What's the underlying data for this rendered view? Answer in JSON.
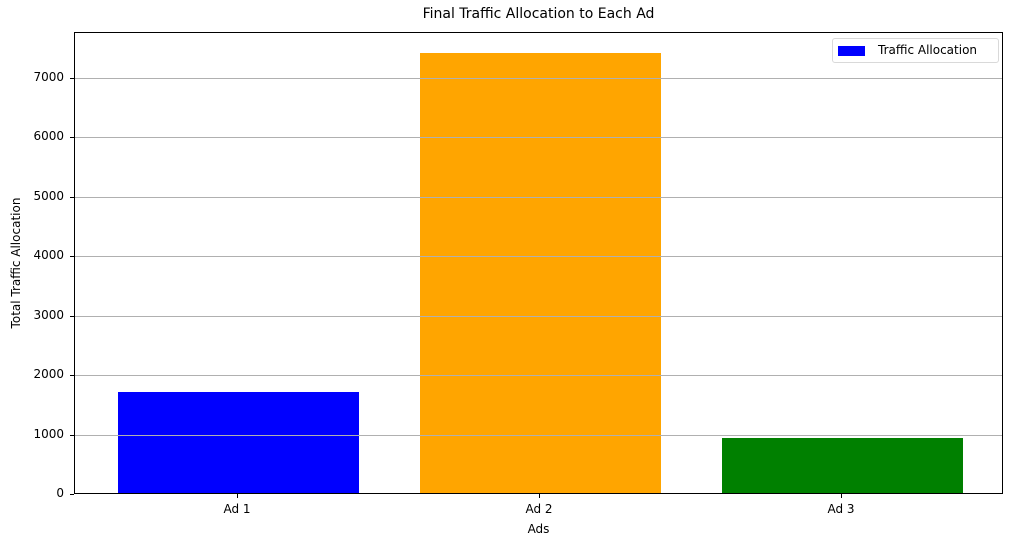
{
  "chart_data": {
    "type": "bar",
    "title": "Final Traffic Allocation to Each Ad",
    "xlabel": "Ads",
    "ylabel": "Total Traffic Allocation",
    "categories": [
      "Ad 1",
      "Ad 2",
      "Ad 3"
    ],
    "values": [
      1697,
      7395,
      924
    ],
    "colors": [
      "#0000ff",
      "#ffa500",
      "#008000"
    ],
    "ylim": [
      0,
      7770
    ],
    "yticks": [
      0,
      1000,
      2000,
      3000,
      4000,
      5000,
      6000,
      7000
    ],
    "ytick_labels": [
      "0",
      "1000",
      "2000",
      "3000",
      "4000",
      "5000",
      "6000",
      "7000"
    ],
    "grid": {
      "axis": "y",
      "on": true,
      "color": "#b0b0b0"
    },
    "legend": {
      "position": "upper right",
      "entries": [
        {
          "label": "Traffic Allocation",
          "color": "#0000ff"
        }
      ]
    }
  }
}
